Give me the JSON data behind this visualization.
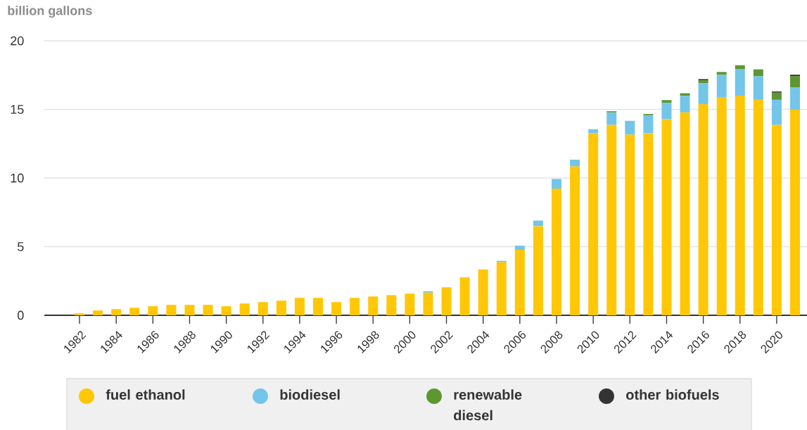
{
  "chart_data": {
    "type": "bar",
    "stacked": true,
    "ylabel": "billion gallons",
    "categories": [
      "1982",
      null,
      "1984",
      null,
      "1986",
      null,
      "1988",
      null,
      "1990",
      null,
      "1992",
      null,
      "1994",
      null,
      "1996",
      null,
      "1998",
      null,
      "2000",
      null,
      "2002",
      null,
      "2004",
      null,
      "2006",
      null,
      "2008",
      null,
      "2010",
      null,
      "2012",
      null,
      "2014",
      null,
      "2016",
      null,
      "2018",
      null,
      "2020",
      null
    ],
    "series": [
      {
        "name": "fuel ethanol",
        "color": "#ffc706",
        "values": [
          0.14,
          0.35,
          0.45,
          0.55,
          0.66,
          0.76,
          0.76,
          0.76,
          0.66,
          0.86,
          0.96,
          1.07,
          1.27,
          1.27,
          0.96,
          1.27,
          1.37,
          1.47,
          1.58,
          1.65,
          2.04,
          2.76,
          3.35,
          3.87,
          4.77,
          6.49,
          9.23,
          10.84,
          13.26,
          13.87,
          13.17,
          13.26,
          14.28,
          14.78,
          15.39,
          15.9,
          16.0,
          15.7,
          13.87,
          14.98
        ]
      },
      {
        "name": "biodiesel",
        "color": "#73c5ea",
        "values": [
          null,
          null,
          null,
          null,
          null,
          null,
          null,
          null,
          null,
          null,
          null,
          null,
          null,
          null,
          null,
          null,
          null,
          null,
          null,
          0.1,
          null,
          null,
          null,
          0.1,
          0.3,
          0.41,
          0.7,
          0.5,
          0.3,
          0.91,
          1.0,
          1.31,
          1.2,
          1.2,
          1.52,
          1.63,
          1.92,
          1.72,
          1.83,
          1.63
        ]
      },
      {
        "name": "renewable diesel",
        "color": "#5e9732",
        "values": [
          null,
          null,
          null,
          null,
          null,
          null,
          null,
          null,
          null,
          null,
          null,
          null,
          null,
          null,
          null,
          null,
          null,
          null,
          null,
          null,
          null,
          null,
          null,
          null,
          null,
          null,
          null,
          null,
          null,
          0.09,
          null,
          0.1,
          0.2,
          0.2,
          0.21,
          0.2,
          0.3,
          0.5,
          0.52,
          0.82
        ]
      },
      {
        "name": "other biofuels",
        "color": "#333333",
        "values": [
          null,
          null,
          null,
          null,
          null,
          null,
          null,
          null,
          null,
          null,
          null,
          null,
          null,
          null,
          null,
          null,
          null,
          null,
          null,
          null,
          null,
          null,
          null,
          null,
          null,
          null,
          null,
          null,
          null,
          null,
          null,
          null,
          null,
          null,
          0.09,
          null,
          null,
          null,
          0.09,
          0.1
        ]
      }
    ],
    "ylim": [
      0,
      20
    ],
    "yticks": [
      0,
      5,
      10,
      15,
      20
    ],
    "grid": "y",
    "legend": "bottom"
  }
}
